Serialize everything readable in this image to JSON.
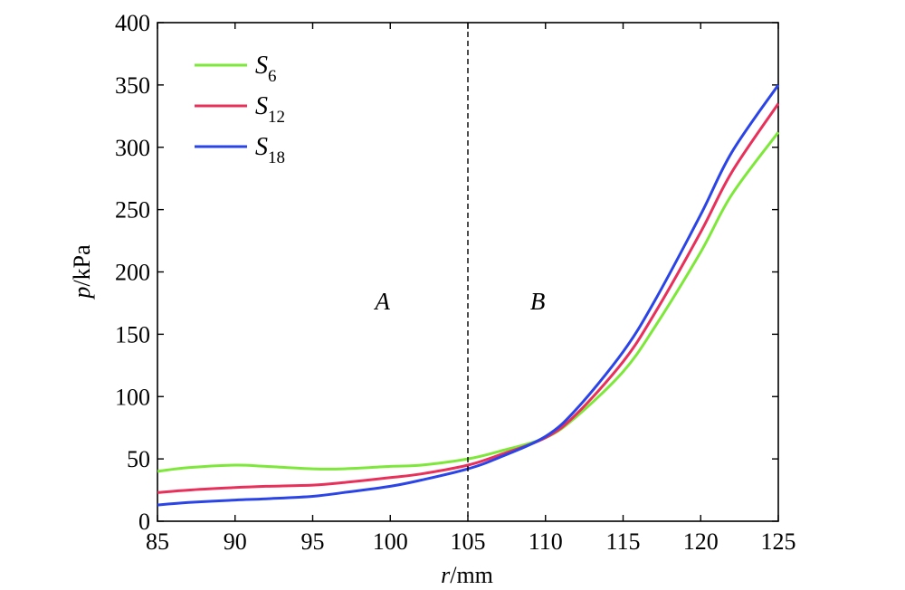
{
  "chart_data": {
    "type": "line",
    "x_unit_label": {
      "var": "r",
      "unit": "/mm"
    },
    "y_unit_label": {
      "var": "p",
      "unit": "/kPa"
    },
    "xlim": [
      85,
      125
    ],
    "ylim": [
      0,
      400
    ],
    "xticks": [
      85,
      90,
      95,
      100,
      105,
      110,
      115,
      120,
      125
    ],
    "yticks": [
      0,
      50,
      100,
      150,
      200,
      250,
      300,
      350,
      400
    ],
    "x": [
      85,
      87,
      90,
      92,
      95,
      97,
      100,
      102,
      105,
      107,
      110,
      112,
      115,
      117,
      120,
      122,
      125
    ],
    "series": [
      {
        "name": "S",
        "sub": "6",
        "color": "#7ee83a",
        "values": [
          40,
          43,
          45,
          44,
          42,
          42,
          44,
          45,
          50,
          56,
          67,
          84,
          120,
          155,
          216,
          262,
          312
        ]
      },
      {
        "name": "S",
        "sub": "12",
        "color": "#e8305a",
        "values": [
          23,
          25,
          27,
          28,
          29,
          31,
          35,
          38,
          45,
          53,
          67,
          86,
          128,
          166,
          232,
          280,
          335
        ]
      },
      {
        "name": "S",
        "sub": "18",
        "color": "#2a44e8",
        "values": [
          13,
          15,
          17,
          18,
          20,
          23,
          28,
          33,
          42,
          51,
          68,
          90,
          136,
          176,
          246,
          296,
          350
        ]
      }
    ],
    "vline": {
      "x": 105,
      "style": "dashed"
    },
    "regions": [
      {
        "label": "A",
        "x": 99.5,
        "y": 170
      },
      {
        "label": "B",
        "x": 109.5,
        "y": 170
      }
    ],
    "legend_placement": "top-left",
    "grid": false
  }
}
